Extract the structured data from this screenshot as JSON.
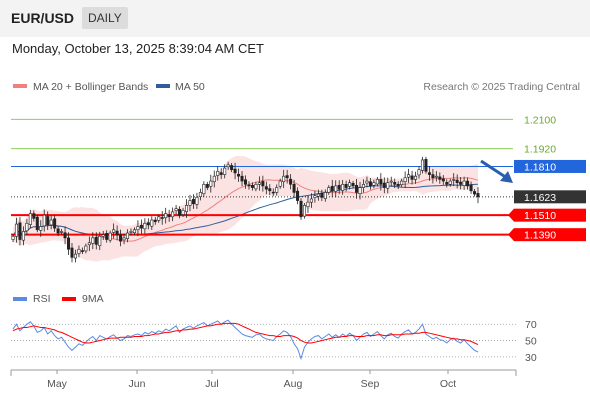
{
  "header": {
    "pair": "EUR/USD",
    "timeframe": "DAILY"
  },
  "datetime": "Monday, October 13, 2025 8:39:04 AM CET",
  "watermark": "Research © 2025 Trading Central",
  "colors": {
    "pivot_red": "#ff0000",
    "ma50_blue": "#2f5e9e",
    "bb_pink": "#f08080",
    "level_green": "#8fce5a",
    "resistance_blue": "#2266dd",
    "current_dark": "#333333",
    "rsi_blue": "#5b8be0",
    "arrow_blue": "#2b5fad"
  },
  "chart_data": [
    {
      "type": "candlestick",
      "legend": [
        {
          "name": "MA 20 + Bollinger Bands",
          "color": "#f08080"
        },
        {
          "name": "MA 50",
          "color": "#2f5e9e"
        }
      ],
      "x_labels": [
        "May",
        "Jun",
        "Jul",
        "Aug",
        "Sep",
        "Oct"
      ],
      "y_range": [
        1.108,
        1.225
      ],
      "levels": [
        {
          "value": "1.2100",
          "kind": "resistance",
          "color": "#8fce5a"
        },
        {
          "value": "1.1920",
          "kind": "resistance",
          "color": "#8fce5a"
        },
        {
          "value": "1.1810",
          "kind": "resistance",
          "color": "#2266dd"
        },
        {
          "value": "1.1623",
          "kind": "current",
          "color": "#333333"
        },
        {
          "value": "1.1510",
          "kind": "pivot",
          "color": "#ff0000"
        },
        {
          "value": "1.1390",
          "kind": "support",
          "color": "#ff0000"
        }
      ],
      "forecast": "down-to-1.1390",
      "closes": [
        1.138,
        1.1455,
        1.136,
        1.141,
        1.146,
        1.152,
        1.149,
        1.142,
        1.144,
        1.151,
        1.145,
        1.148,
        1.143,
        1.14,
        1.141,
        1.137,
        1.13,
        1.125,
        1.127,
        1.13,
        1.129,
        1.132,
        1.134,
        1.137,
        1.133,
        1.138,
        1.139,
        1.136,
        1.14,
        1.142,
        1.139,
        1.135,
        1.137,
        1.14,
        1.141,
        1.142,
        1.144,
        1.143,
        1.146,
        1.145,
        1.148,
        1.147,
        1.15,
        1.149,
        1.152,
        1.15,
        1.153,
        1.155,
        1.151,
        1.154,
        1.157,
        1.16,
        1.158,
        1.162,
        1.165,
        1.17,
        1.168,
        1.172,
        1.175,
        1.178,
        1.176,
        1.18,
        1.182,
        1.179,
        1.177,
        1.175,
        1.172,
        1.17,
        1.169,
        1.168,
        1.17,
        1.171,
        1.169,
        1.167,
        1.166,
        1.165,
        1.168,
        1.172,
        1.175,
        1.174,
        1.17,
        1.165,
        1.16,
        1.15,
        1.157,
        1.159,
        1.161,
        1.163,
        1.164,
        1.162,
        1.165,
        1.168,
        1.166,
        1.169,
        1.167,
        1.17,
        1.168,
        1.171,
        1.169,
        1.165,
        1.168,
        1.17,
        1.172,
        1.169,
        1.171,
        1.173,
        1.17,
        1.168,
        1.171,
        1.172,
        1.17,
        1.169,
        1.172,
        1.174,
        1.176,
        1.173,
        1.175,
        1.179,
        1.185,
        1.178,
        1.176,
        1.174,
        1.175,
        1.173,
        1.172,
        1.17,
        1.172,
        1.173,
        1.171,
        1.17,
        1.172,
        1.169,
        1.166,
        1.164,
        1.1623
      ]
    },
    {
      "type": "line",
      "legend": [
        {
          "name": "RSI",
          "color": "#5b8be0"
        },
        {
          "name": "9MA",
          "color": "#ff0000"
        }
      ],
      "y_ticks": [
        "70",
        "50",
        "30"
      ],
      "y_range": [
        20,
        85
      ],
      "series": [
        {
          "name": "RSI",
          "values": [
            64,
            70,
            62,
            66,
            70,
            73,
            68,
            60,
            62,
            66,
            58,
            62,
            56,
            52,
            54,
            48,
            42,
            38,
            42,
            46,
            44,
            48,
            52,
            55,
            50,
            56,
            54,
            52,
            55,
            57,
            53,
            50,
            52,
            56,
            55,
            57,
            58,
            56,
            60,
            58,
            61,
            59,
            62,
            60,
            64,
            62,
            65,
            68,
            60,
            64,
            66,
            68,
            65,
            68,
            70,
            72,
            68,
            70,
            72,
            74,
            70,
            73,
            75,
            70,
            66,
            62,
            58,
            56,
            55,
            54,
            57,
            58,
            54,
            52,
            51,
            50,
            55,
            58,
            62,
            60,
            55,
            46,
            40,
            28,
            42,
            48,
            52,
            55,
            56,
            52,
            55,
            58,
            54,
            57,
            54,
            58,
            55,
            59,
            56,
            50,
            54,
            58,
            60,
            55,
            58,
            61,
            56,
            52,
            57,
            59,
            55,
            53,
            58,
            61,
            63,
            58,
            60,
            64,
            70,
            58,
            55,
            52,
            54,
            51,
            50,
            47,
            51,
            53,
            49,
            47,
            51,
            46,
            42,
            38,
            36
          ]
        },
        {
          "name": "9MA",
          "values": [
            62,
            64,
            65,
            66,
            66,
            67,
            68,
            67,
            66,
            66,
            65,
            64,
            63,
            61,
            60,
            58,
            56,
            54,
            52,
            50,
            48,
            47,
            47,
            48,
            49,
            50,
            51,
            52,
            53,
            53,
            53,
            54,
            54,
            54,
            54,
            55,
            55,
            55,
            56,
            56,
            57,
            58,
            58,
            59,
            60,
            60,
            61,
            62,
            62,
            63,
            63,
            64,
            64,
            65,
            66,
            67,
            68,
            68,
            69,
            70,
            70,
            71,
            71,
            71,
            71,
            70,
            68,
            66,
            64,
            62,
            60,
            59,
            58,
            57,
            56,
            56,
            55,
            55,
            56,
            56,
            56,
            55,
            53,
            50,
            48,
            47,
            47,
            48,
            49,
            50,
            51,
            52,
            53,
            54,
            54,
            55,
            55,
            56,
            56,
            55,
            55,
            55,
            56,
            56,
            56,
            57,
            57,
            56,
            56,
            57,
            57,
            57,
            57,
            58,
            58,
            58,
            59,
            59,
            60,
            60,
            59,
            58,
            57,
            56,
            55,
            54,
            53,
            52,
            52,
            51,
            51,
            50,
            49,
            47,
            45
          ]
        }
      ]
    }
  ]
}
